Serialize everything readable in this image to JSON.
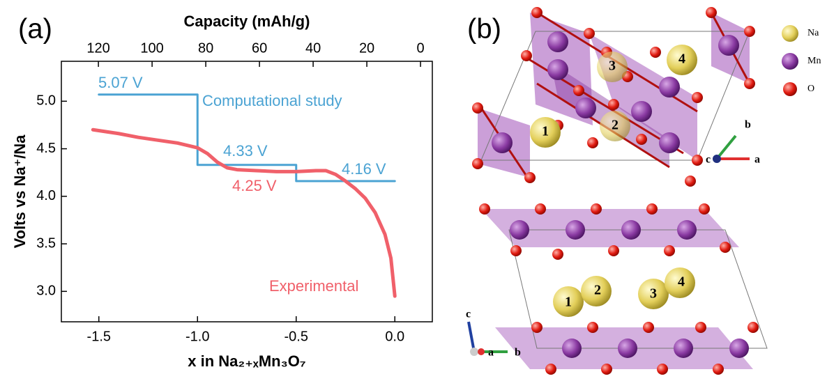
{
  "chart_data": {
    "type": "line",
    "panel_label": "(a)",
    "xlabel": "x in Na₂₊ₓMn₃O₇",
    "ylabel": "Volts vs Na⁺/Na",
    "x2label": "Capacity (mAh/g)",
    "xlim": [
      -1.69,
      0.19
    ],
    "ylim": [
      2.68,
      5.42
    ],
    "x2lim": [
      133.8,
      -4.4
    ],
    "xticks": [
      -1.5,
      {
        "value": -1,
        "label": "-1.0"
      },
      -0.5,
      {
        "value": 0,
        "label": "0.0"
      }
    ],
    "yticks": [
      {
        "value": 3,
        "label": "3.0"
      },
      3.5,
      {
        "value": 4,
        "label": "4.0"
      },
      4.5,
      {
        "value": 5,
        "label": "5.0"
      }
    ],
    "x2ticks": [
      120,
      100,
      80,
      60,
      40,
      20,
      0
    ],
    "series": [
      {
        "name": "Computational study",
        "color": "#4ba3d3",
        "x": [
          -1.5,
          -1,
          -1,
          -0.5,
          -0.5,
          0
        ],
        "values": [
          5.07,
          5.07,
          4.33,
          4.33,
          4.16,
          4.16
        ]
      },
      {
        "name": "Experimental",
        "color": "#f0606a",
        "x": [
          -1.53,
          -1.4,
          -1.3,
          -1.2,
          -1.1,
          -1.0,
          -0.95,
          -0.9,
          -0.85,
          -0.8,
          -0.7,
          -0.6,
          -0.5,
          -0.4,
          -0.35,
          -0.3,
          -0.25,
          -0.2,
          -0.15,
          -0.1,
          -0.05,
          -0.02,
          0
        ],
        "values": [
          4.7,
          4.66,
          4.62,
          4.59,
          4.56,
          4.51,
          4.45,
          4.36,
          4.3,
          4.28,
          4.27,
          4.26,
          4.26,
          4.27,
          4.27,
          4.23,
          4.16,
          4.08,
          3.98,
          3.83,
          3.6,
          3.35,
          2.95
        ]
      }
    ],
    "annotations": [
      {
        "text": "5.07 V",
        "color": "#4ba3d3"
      },
      {
        "text": "4.33 V",
        "color": "#4ba3d3"
      },
      {
        "text": "4.16 V",
        "color": "#4ba3d3"
      },
      {
        "text": "4.25 V",
        "color": "#f0606a"
      }
    ]
  },
  "panel_b": {
    "label": "(b)",
    "legend": [
      "Na",
      "Mn",
      "O"
    ],
    "top_sites": [
      "1",
      "2",
      "3",
      "4"
    ],
    "bottom_sites": [
      "1",
      "2",
      "3",
      "4"
    ],
    "top_axes": [
      "b",
      "c",
      "a"
    ],
    "bottom_axes": [
      "c",
      "a",
      "b"
    ]
  }
}
